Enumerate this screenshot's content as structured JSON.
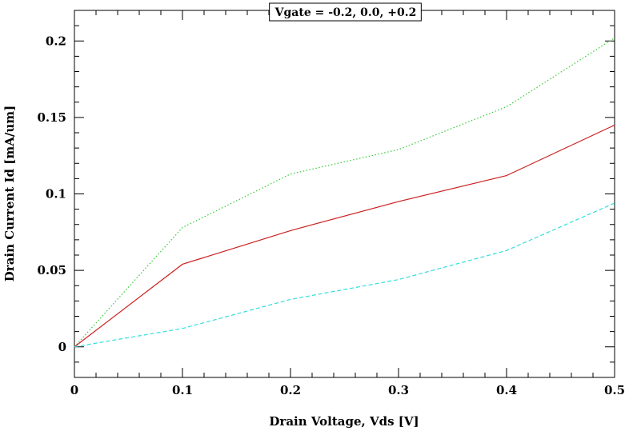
{
  "chart_data": {
    "type": "line",
    "title": "",
    "legend_label": "Vgate = -0.2, 0.0, +0.2",
    "legend_placement": "top-center",
    "xlabel": "Drain Voltage, Vds [V]",
    "ylabel": "Drain Current Id [mA/um]",
    "xlim": [
      0,
      0.5
    ],
    "ylim": [
      -0.02,
      0.22
    ],
    "x_ticks": [
      0,
      0.1,
      0.2,
      0.3,
      0.4,
      0.5
    ],
    "x_tick_labels": [
      "0",
      "0.1",
      "0.2",
      "0.3",
      "0.4",
      "0.5"
    ],
    "y_ticks": [
      0,
      0.05,
      0.1,
      0.15,
      0.2
    ],
    "y_tick_labels": [
      "0",
      "0.05",
      "0.1",
      "0.15",
      "0.2"
    ],
    "grid": false,
    "x": [
      0,
      0.1,
      0.2,
      0.3,
      0.4,
      0.5
    ],
    "series": [
      {
        "values": [
          0,
          0.078,
          0.113,
          0.129,
          0.157,
          0.202
        ],
        "color": "#33cc33",
        "dash": "dotted"
      },
      {
        "values": [
          0,
          0.054,
          0.076,
          0.095,
          0.112,
          0.145
        ],
        "color": "#cc2222",
        "dash": "solid"
      },
      {
        "values": [
          0,
          0.012,
          0.031,
          0.044,
          0.063,
          0.094
        ],
        "color": "#33dddd",
        "dash": "dashed"
      }
    ]
  }
}
